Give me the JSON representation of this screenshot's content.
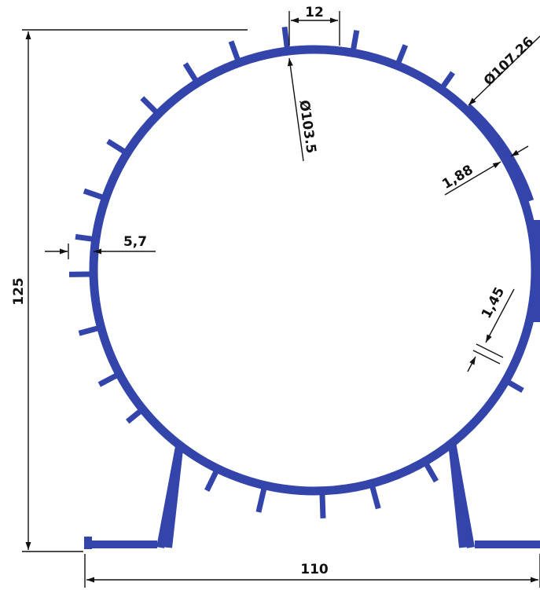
{
  "colors": {
    "profile": "#3344aa",
    "dimension": "#111111",
    "background": "#ffffff"
  },
  "dimensions": {
    "overall_height": "125",
    "overall_width": "110",
    "top_flat": "12",
    "inner_diameter": "Ø103.5",
    "outer_diameter": "Ø107.26",
    "wall_thickness": "1,88",
    "fin_length": "5,7",
    "inner_wall": "1,45"
  }
}
